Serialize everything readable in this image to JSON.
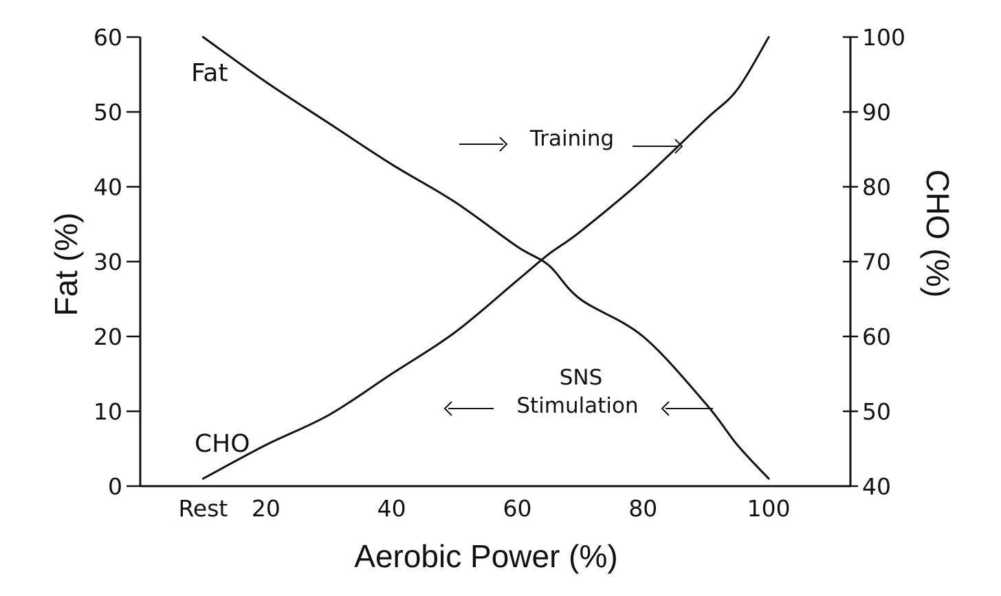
{
  "chart_data": {
    "type": "line",
    "xlabel": "Aerobic Power (%)",
    "ylabel_left": "Fat (%)",
    "ylabel_right": "CHO (%)",
    "x_ticks": [
      "Rest",
      "20",
      "40",
      "60",
      "80",
      "100"
    ],
    "x_tick_values": [
      10,
      20,
      40,
      60,
      80,
      100
    ],
    "y_left_ticks": [
      "0",
      "10",
      "20",
      "30",
      "40",
      "50",
      "60"
    ],
    "y_left_range": [
      0,
      60
    ],
    "y_right_ticks": [
      "40",
      "50",
      "60",
      "70",
      "80",
      "90",
      "100"
    ],
    "y_right_range": [
      40,
      100
    ],
    "x_range": [
      0,
      113
    ],
    "grid": false,
    "series": [
      {
        "name": "Fat",
        "axis": "left",
        "x": [
          10,
          20,
          30,
          40,
          50,
          60,
          65,
          70,
          80,
          90,
          95,
          100
        ],
        "values": [
          60,
          54,
          48.5,
          43,
          38,
          32,
          29.5,
          25,
          20,
          11,
          5.5,
          1
        ]
      },
      {
        "name": "CHO",
        "axis": "right",
        "x": [
          10,
          20,
          30,
          40,
          50,
          60,
          65,
          70,
          80,
          90,
          95,
          100
        ],
        "values": [
          41,
          45.5,
          49.5,
          55,
          60.5,
          67.5,
          71,
          74,
          81,
          89,
          93,
          100
        ]
      }
    ],
    "annotations": [
      {
        "text": "Training",
        "direction": "right"
      },
      {
        "text_line1": "SNS",
        "text_line2": "Stimulation",
        "direction": "left"
      }
    ]
  }
}
